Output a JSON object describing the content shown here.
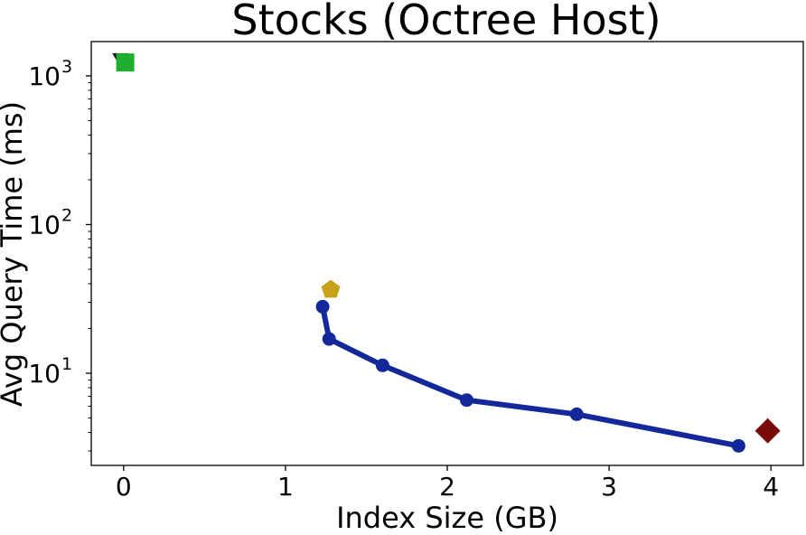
{
  "chart_data": {
    "type": "scatter",
    "title": "Stocks (Octree Host)",
    "xlabel": "Index Size (GB)",
    "ylabel": "Avg Query Time (ms)",
    "xlim": [
      -0.2,
      4.2
    ],
    "ylim": [
      2.4,
      1700
    ],
    "yscale": "log",
    "grid": false,
    "xticks": [
      {
        "value": 0,
        "label": "0"
      },
      {
        "value": 1,
        "label": "1"
      },
      {
        "value": 2,
        "label": "2"
      },
      {
        "value": 3,
        "label": "3"
      },
      {
        "value": 4,
        "label": "4"
      }
    ],
    "yticks": [
      {
        "value": 10,
        "base": "10",
        "exp": "1"
      },
      {
        "value": 100,
        "base": "10",
        "exp": "2"
      },
      {
        "value": 1000,
        "base": "10",
        "exp": "3"
      }
    ],
    "series": [
      {
        "marker": "circle-line",
        "color": "#13289a",
        "points": [
          {
            "x": 1.23,
            "y": 28.0
          },
          {
            "x": 1.27,
            "y": 17.0
          },
          {
            "x": 1.6,
            "y": 11.3
          },
          {
            "x": 2.12,
            "y": 6.6
          },
          {
            "x": 2.8,
            "y": 5.3
          },
          {
            "x": 3.8,
            "y": 3.25
          }
        ]
      },
      {
        "marker": "pentagon",
        "color": "#c9a21c",
        "points": [
          {
            "x": 1.28,
            "y": 36.5
          }
        ]
      },
      {
        "marker": "diamond",
        "color": "#7a0a0a",
        "points": [
          {
            "x": 3.98,
            "y": 4.1
          }
        ]
      },
      {
        "marker": "triangle-down",
        "color": "#111111",
        "points": [
          {
            "x": -0.02,
            "y": 1300
          }
        ]
      },
      {
        "marker": "square",
        "color": "#1fae2e",
        "points": [
          {
            "x": 0.01,
            "y": 1230
          }
        ]
      }
    ]
  }
}
